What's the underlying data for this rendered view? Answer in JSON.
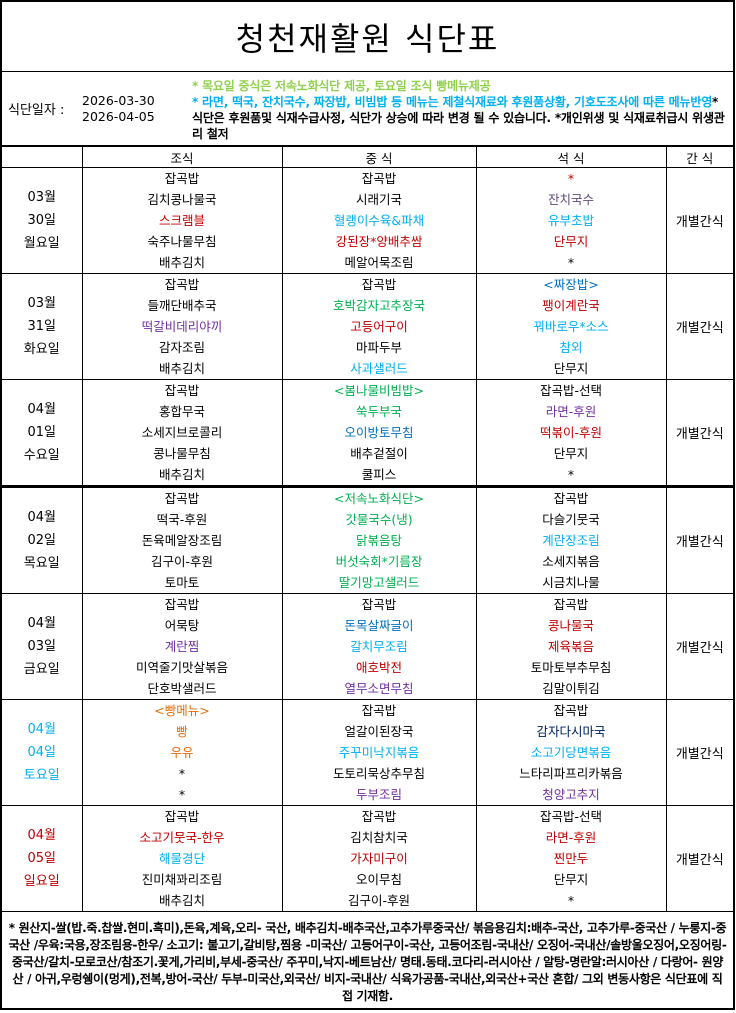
{
  "title": "청천재활원 식단표",
  "info": {
    "label": "식단일자 :",
    "date_from": "2026-03-30",
    "date_to": "2026-04-05",
    "notice_line1": "* 목요일 중식은 저속노화식단 제공, 토요일 조식 빵메뉴제공",
    "notice_line2": "* 라면, 떡국, 잔치국수, 짜장밥, 비빔밥 등 메뉴는 제철식재료와 후원품상황, 기호도조사에 따른 메뉴반영",
    "notice_line3": "* 식단은 후원품및 식재수급사정, 식단가 상승에 따라 변경 될 수 있습니다. *개인위생 및 식재료취급시 위생관리 철저",
    "colors": {
      "line1": "#92d050",
      "line2": "#00b0f0"
    }
  },
  "headers": [
    "",
    "조식",
    "중  식",
    "석  식",
    "간  식"
  ],
  "days": [
    {
      "month": "03월",
      "day": "30일",
      "weekday": "월요일",
      "color": "#000000",
      "snack": "개별간식",
      "breakfast": [
        {
          "t": "잡곡밥",
          "c": "#000"
        },
        {
          "t": "김치콩나물국",
          "c": "#000"
        },
        {
          "t": "스크램블",
          "c": "#c00000"
        },
        {
          "t": "숙주나물무침",
          "c": "#000"
        },
        {
          "t": "배추김치",
          "c": "#000"
        }
      ],
      "lunch": [
        {
          "t": "잡곡밥",
          "c": "#000"
        },
        {
          "t": "시래기국",
          "c": "#000"
        },
        {
          "t": "혈랭이수육&파채",
          "c": "#00b0f0"
        },
        {
          "t": "강된장*양배추쌈",
          "c": "#c00000"
        },
        {
          "t": "메알어묵조림",
          "c": "#000"
        }
      ],
      "dinner": [
        {
          "t": "*",
          "c": "#c00000"
        },
        {
          "t": "잔치국수",
          "c": "#604a7b"
        },
        {
          "t": "유부초밥",
          "c": "#00b0f0"
        },
        {
          "t": "단무지",
          "c": "#c00000"
        },
        {
          "t": "*",
          "c": "#000"
        }
      ]
    },
    {
      "month": "03월",
      "day": "31일",
      "weekday": "화요일",
      "color": "#000000",
      "snack": "개별간식",
      "breakfast": [
        {
          "t": "잡곡밥",
          "c": "#000"
        },
        {
          "t": "들깨단배추국",
          "c": "#000"
        },
        {
          "t": "떡갈비데리야끼",
          "c": "#7030a0"
        },
        {
          "t": "감자조림",
          "c": "#000"
        },
        {
          "t": "배추김치",
          "c": "#000"
        }
      ],
      "lunch": [
        {
          "t": "잡곡밥",
          "c": "#000"
        },
        {
          "t": "호박감자고추장국",
          "c": "#00b050"
        },
        {
          "t": "고등어구이",
          "c": "#c00000"
        },
        {
          "t": "마파두부",
          "c": "#000"
        },
        {
          "t": "사과샐러드",
          "c": "#00b0f0"
        }
      ],
      "dinner": [
        {
          "t": "<짜장밥>",
          "c": "#0070c0"
        },
        {
          "t": "팽이계란국",
          "c": "#c00000"
        },
        {
          "t": "꿔바로우*소스",
          "c": "#00b0f0"
        },
        {
          "t": "참외",
          "c": "#00b0f0"
        },
        {
          "t": "단무지",
          "c": "#000"
        }
      ]
    },
    {
      "month": "04월",
      "day": "01일",
      "weekday": "수요일",
      "color": "#000000",
      "snack": "개별간식",
      "breakfast": [
        {
          "t": "잡곡밥",
          "c": "#000"
        },
        {
          "t": "홍합무국",
          "c": "#000"
        },
        {
          "t": "소세지브로콜리",
          "c": "#000"
        },
        {
          "t": "콩나물무침",
          "c": "#000"
        },
        {
          "t": "배추김치",
          "c": "#000"
        }
      ],
      "lunch": [
        {
          "t": "<봄나물비빔밥>",
          "c": "#00b050"
        },
        {
          "t": "쑥두부국",
          "c": "#00b050"
        },
        {
          "t": "오이방토무침",
          "c": "#0070c0"
        },
        {
          "t": "배추겉절이",
          "c": "#000"
        },
        {
          "t": "쿨피스",
          "c": "#000"
        }
      ],
      "dinner": [
        {
          "t": "잡곡밥-선택",
          "c": "#000"
        },
        {
          "t": "라면-후원",
          "c": "#7030a0"
        },
        {
          "t": "떡볶이-후원",
          "c": "#c00000"
        },
        {
          "t": "단무지",
          "c": "#000"
        },
        {
          "t": "*",
          "c": "#000"
        }
      ]
    },
    {
      "month": "04월",
      "day": "02일",
      "weekday": "목요일",
      "color": "#000000",
      "snack": "개별간식",
      "breakfast": [
        {
          "t": "잡곡밥",
          "c": "#000"
        },
        {
          "t": "떡국-후원",
          "c": "#000"
        },
        {
          "t": "돈육메알장조림",
          "c": "#000"
        },
        {
          "t": "김구이-후원",
          "c": "#000"
        },
        {
          "t": "토마토",
          "c": "#000"
        }
      ],
      "lunch": [
        {
          "t": "<저속노화식단>",
          "c": "#00b050"
        },
        {
          "t": "갓물국수(냉)",
          "c": "#00b050"
        },
        {
          "t": "닭볶음탕",
          "c": "#00b050"
        },
        {
          "t": "버섯숙회*기름장",
          "c": "#00b050"
        },
        {
          "t": "딸기망고샐러드",
          "c": "#00b050"
        }
      ],
      "dinner": [
        {
          "t": "잡곡밥",
          "c": "#000"
        },
        {
          "t": "다슬기뭇국",
          "c": "#000"
        },
        {
          "t": "계란장조림",
          "c": "#00b0f0"
        },
        {
          "t": "소세지볶음",
          "c": "#000"
        },
        {
          "t": "시금치나물",
          "c": "#000"
        }
      ]
    },
    {
      "month": "04월",
      "day": "03일",
      "weekday": "금요일",
      "color": "#000000",
      "snack": "개별간식",
      "breakfast": [
        {
          "t": "잡곡밥",
          "c": "#000"
        },
        {
          "t": "어묵탕",
          "c": "#000"
        },
        {
          "t": "계란찜",
          "c": "#7030a0"
        },
        {
          "t": "미역줄기맛살볶음",
          "c": "#000"
        },
        {
          "t": "단호박샐러드",
          "c": "#000"
        }
      ],
      "lunch": [
        {
          "t": "잡곡밥",
          "c": "#000"
        },
        {
          "t": "돈목살짜글이",
          "c": "#0070c0"
        },
        {
          "t": "갈치무조림",
          "c": "#00b0f0"
        },
        {
          "t": "애호박전",
          "c": "#c00000"
        },
        {
          "t": "열무소면무침",
          "c": "#7030a0"
        }
      ],
      "dinner": [
        {
          "t": "잡곡밥",
          "c": "#000"
        },
        {
          "t": "콩나물국",
          "c": "#c00000"
        },
        {
          "t": "제육볶음",
          "c": "#c00000"
        },
        {
          "t": "토마토부추무침",
          "c": "#000"
        },
        {
          "t": "김말이튀김",
          "c": "#000"
        }
      ]
    },
    {
      "month": "04월",
      "day": "04일",
      "weekday": "토요일",
      "color": "#00b0f0",
      "snack": "개별간식",
      "breakfast": [
        {
          "t": "<빵메뉴>",
          "c": "#e46c0a"
        },
        {
          "t": "빵",
          "c": "#e46c0a"
        },
        {
          "t": "우유",
          "c": "#e46c0a"
        },
        {
          "t": "*",
          "c": "#000"
        },
        {
          "t": "*",
          "c": "#000"
        }
      ],
      "lunch": [
        {
          "t": "잡곡밥",
          "c": "#000"
        },
        {
          "t": "얼갈이된장국",
          "c": "#000"
        },
        {
          "t": "주꾸미낙지볶음",
          "c": "#00b0f0"
        },
        {
          "t": "도토리묵상추무침",
          "c": "#000"
        },
        {
          "t": "두부조림",
          "c": "#7030a0"
        }
      ],
      "dinner": [
        {
          "t": "잡곡밥",
          "c": "#000"
        },
        {
          "t": "감자다시마국",
          "c": "#002060"
        },
        {
          "t": "소고기당면볶음",
          "c": "#00b0f0"
        },
        {
          "t": "느타리파프리카볶음",
          "c": "#000"
        },
        {
          "t": "청양고추지",
          "c": "#7030a0"
        }
      ]
    },
    {
      "month": "04월",
      "day": "05일",
      "weekday": "일요일",
      "color": "#c00000",
      "snack": "개별간식",
      "breakfast": [
        {
          "t": "잡곡밥",
          "c": "#000"
        },
        {
          "t": "소고기뭇국-한우",
          "c": "#c00000"
        },
        {
          "t": "해물경단",
          "c": "#00b0f0"
        },
        {
          "t": "진미채꽈리조림",
          "c": "#000"
        },
        {
          "t": "배추김치",
          "c": "#000"
        }
      ],
      "lunch": [
        {
          "t": "잡곡밥",
          "c": "#000"
        },
        {
          "t": "김치참치국",
          "c": "#000"
        },
        {
          "t": "가자미구이",
          "c": "#c00000"
        },
        {
          "t": "오이무침",
          "c": "#000"
        },
        {
          "t": "김구이-후원",
          "c": "#000"
        }
      ],
      "dinner": [
        {
          "t": "잡곡밥-선택",
          "c": "#000"
        },
        {
          "t": "라면-후원",
          "c": "#c00000"
        },
        {
          "t": "찐만두",
          "c": "#c00000"
        },
        {
          "t": "단무지",
          "c": "#000"
        },
        {
          "t": "*",
          "c": "#000"
        }
      ]
    }
  ],
  "footer": "* 원산지-쌀(밥.죽.찹쌀.현미.흑미),돈육,계육,오리- 국산, 배추김치-배추국산,고추가루중국산/ 볶음용김치:배추-국산, 고추가루-중국산 / 누룽지-중국산 /우육:국용,장조림용-한우/ 소고기: 불고기,갈비탕,찜용 -미국산/ 고등어구이-국산, 고등어조림-국내산/ 오징어-국내산/솔방울오징어,오징어링-중국산/갈치-모로코산/참조기.꽃게,가리비,부세-중국산/ 주꾸미,낙지-베트남산/ 명태.동태.코다리-러시아산 / 알탕-명란알:러시아산 / 다랑어- 원양산 / 아귀,우렁쉥이(멍게),전복,방어-국산/ 두부-미국산,외국산/ 비지-국내산/ 식육가공품-국내산,외국산+국산 혼합/ 그외 변동사항은 식단표에 직접 기재함."
}
